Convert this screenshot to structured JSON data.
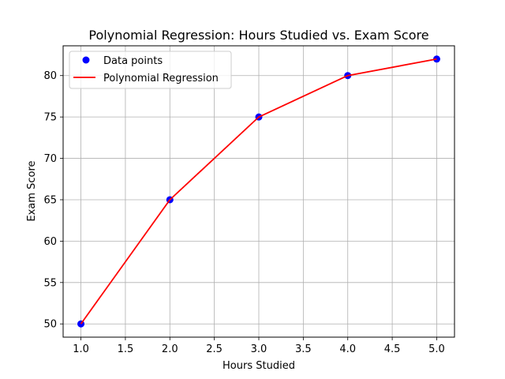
{
  "chart_data": {
    "type": "scatter",
    "title": "Polynomial Regression: Hours Studied vs. Exam Score",
    "xlabel": "Hours Studied",
    "ylabel": "Exam Score",
    "xlim": [
      0.8,
      5.2
    ],
    "ylim": [
      48.4,
      83.6
    ],
    "xticks": [
      1.0,
      1.5,
      2.0,
      2.5,
      3.0,
      3.5,
      4.0,
      4.5,
      5.0
    ],
    "xtick_labels": [
      "1.0",
      "1.5",
      "2.0",
      "2.5",
      "3.0",
      "3.5",
      "4.0",
      "4.5",
      "5.0"
    ],
    "yticks": [
      50,
      55,
      60,
      65,
      70,
      75,
      80
    ],
    "ytick_labels": [
      "50",
      "55",
      "60",
      "65",
      "70",
      "75",
      "80"
    ],
    "grid": true,
    "legend_position": "top-left",
    "series": [
      {
        "name": "Data points",
        "kind": "scatter",
        "color": "#0000ff",
        "x": [
          1,
          2,
          3,
          4,
          5
        ],
        "y": [
          50,
          65,
          75,
          80,
          82
        ]
      },
      {
        "name": "Polynomial Regression",
        "kind": "line",
        "color": "#ff0000",
        "x": [
          1,
          2,
          3,
          4,
          5
        ],
        "y": [
          50,
          65,
          75,
          80,
          82
        ]
      }
    ]
  }
}
